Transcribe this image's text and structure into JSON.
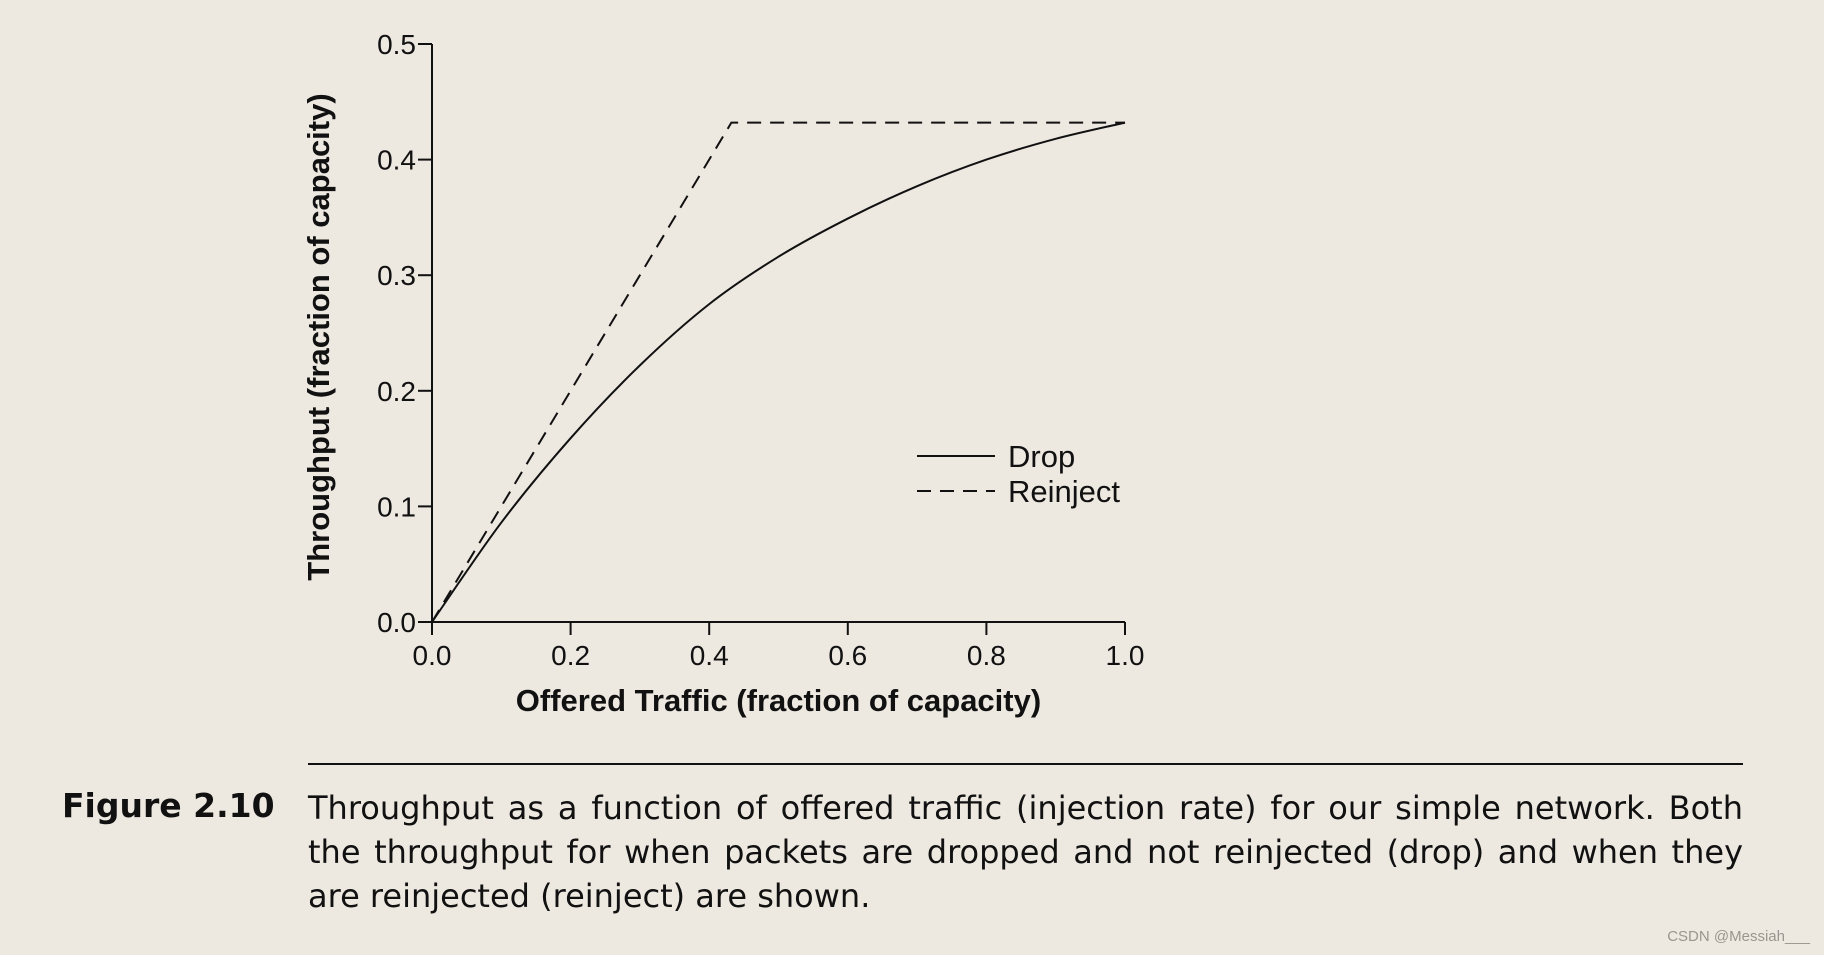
{
  "chart_data": {
    "type": "line",
    "xlabel": "Offered Traffic (fraction of capacity)",
    "ylabel": "Throughput (fraction of capacity)",
    "xlim": [
      0.0,
      1.0
    ],
    "ylim": [
      0.0,
      0.5
    ],
    "xticks": [
      "0.0",
      "0.2",
      "0.4",
      "0.6",
      "0.8",
      "1.0"
    ],
    "yticks": [
      "0.0",
      "0.1",
      "0.2",
      "0.3",
      "0.4",
      "0.5"
    ],
    "grid": false,
    "legend_position": "center-right",
    "series": [
      {
        "name": "Drop",
        "style": "solid",
        "x": [
          0.0,
          0.1,
          0.2,
          0.3,
          0.4,
          0.5,
          0.6,
          0.7,
          0.8,
          0.9,
          1.0
        ],
        "y": [
          0.0,
          0.086,
          0.159,
          0.222,
          0.275,
          0.316,
          0.349,
          0.377,
          0.4,
          0.418,
          0.432
        ]
      },
      {
        "name": "Reinject",
        "style": "dashed",
        "x": [
          0.0,
          0.432,
          1.0
        ],
        "y": [
          0.0,
          0.432,
          0.432
        ]
      }
    ]
  },
  "caption": {
    "label": "Figure 2.10",
    "text": "Throughput as a function of offered traffic (injection rate) for our simple network. Both the throughput for when packets are dropped and not reinjected (drop) and when they are rein­jected (reinject) are shown."
  },
  "watermark": "CSDN @Messiah___",
  "colors": {
    "background": "#ede8e0",
    "ink": "#111111"
  }
}
